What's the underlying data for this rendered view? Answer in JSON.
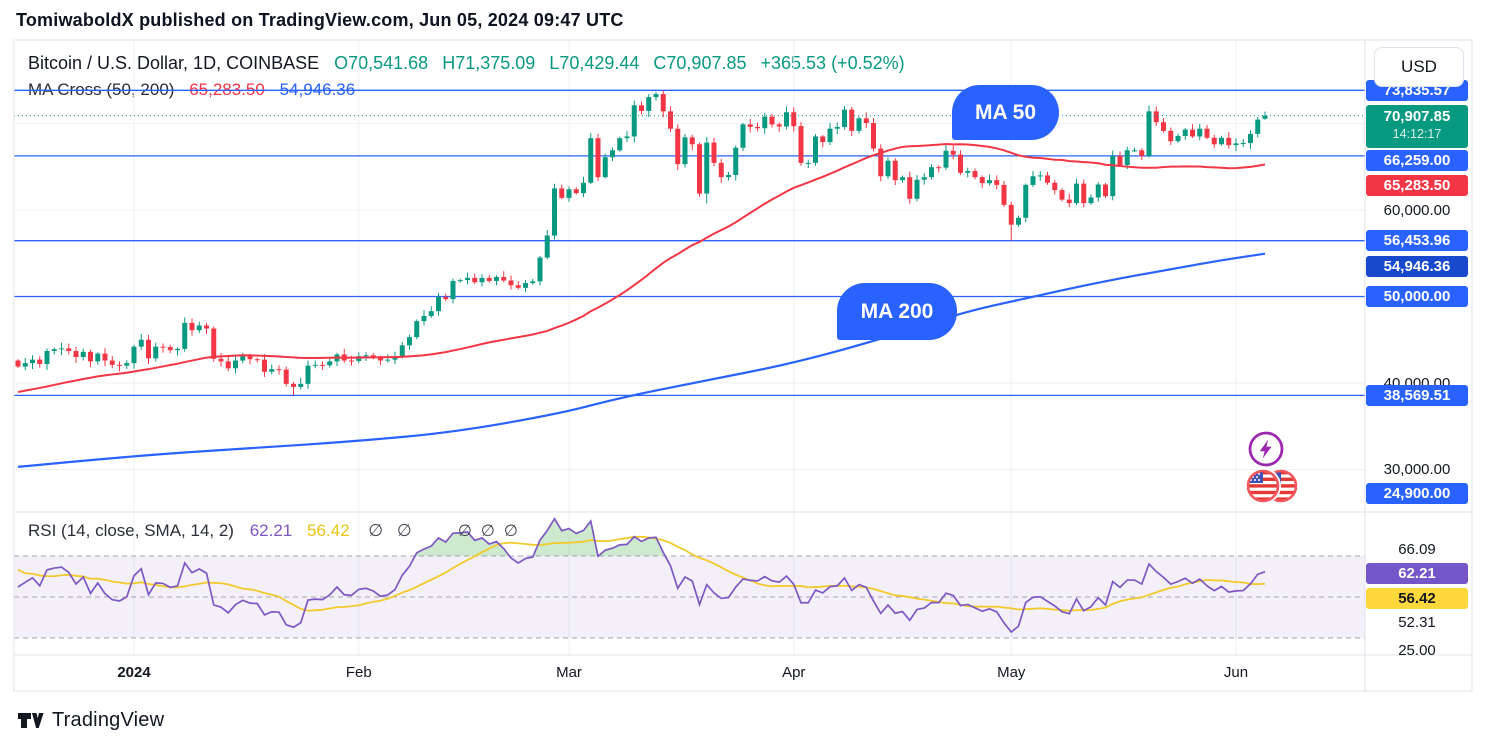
{
  "page": {
    "header": "TomiwaboldX published on TradingView.com, Jun 05, 2024 09:47 UTC",
    "footer_brand": "TradingView"
  },
  "chart_header": {
    "symbol_line": "Bitcoin / U.S. Dollar, 1D, COINBASE",
    "ohlc": {
      "open": "O70,541.68",
      "high": "H71,375.09",
      "low": "L70,429.44",
      "close": "C70,907.85",
      "change": "+365.53 (+0.52%)"
    }
  },
  "ma_cross_legend": {
    "title": "MA Cross (50, 200)",
    "ma50_value": "65,283.50",
    "ma200_value": "54,946.36"
  },
  "rsi_legend": {
    "title": "RSI (14, close, SMA, 14, 2)",
    "value": "62.21",
    "sma_value": "56.42",
    "null_symbol": "∅"
  },
  "annotations": {
    "ma50_bubble": "MA 50",
    "ma200_bubble": "MA 200"
  },
  "price_scale": {
    "currency_button": "USD",
    "labels": [
      {
        "text": "73,835.57",
        "value": 73835.57,
        "bg": "blue"
      },
      {
        "text": "70,907.85",
        "value": 70907.85,
        "bg": "green",
        "countdown": "14:12:17"
      },
      {
        "text": "66,259.00",
        "value": 66259.0,
        "bg": "blue"
      },
      {
        "text": "65,283.50",
        "value": 65283.5,
        "bg": "red"
      },
      {
        "text": "60,000.00",
        "value": 60000,
        "bg": "none"
      },
      {
        "text": "56,453.96",
        "value": 56453.96,
        "bg": "blue"
      },
      {
        "text": "54,946.36",
        "value": 54946.36,
        "bg": "darkblue"
      },
      {
        "text": "50,000.00",
        "value": 50000,
        "bg": "blue"
      },
      {
        "text": "40,000.00",
        "value": 40000,
        "bg": "none"
      },
      {
        "text": "38,569.51",
        "value": 38569.51,
        "bg": "blue"
      },
      {
        "text": "30,000.00",
        "value": 30000,
        "bg": "none"
      },
      {
        "text": "24,900.00",
        "value": 24900,
        "bg": "blue"
      }
    ]
  },
  "rsi_scale_labels": [
    {
      "text": "66.09",
      "bg": "none"
    },
    {
      "text": "62.21",
      "bg": "purple"
    },
    {
      "text": "56.42",
      "bg": "yellow"
    },
    {
      "text": "52.31",
      "bg": "none"
    },
    {
      "text": "25.00",
      "bg": "none"
    }
  ],
  "colors": {
    "up": "#089981",
    "down": "#f23645",
    "blue": "#2962ff",
    "darkblue": "#1848cc",
    "red": "#f23645",
    "green": "#089981",
    "purple": "#7456c8",
    "purple_line": "#7e57c2",
    "yellow": "#ffd83d",
    "yellow_line": "#f2ca2c",
    "text": "#131722",
    "grid": "#eef0f4",
    "border": "#e0e3eb"
  },
  "chart_data": {
    "type": "candlestick",
    "title": "Bitcoin / U.S. Dollar, 1D, COINBASE",
    "unit": "USD",
    "start_date_approx": "2023-12-16",
    "x_axis": {
      "ticks": [
        {
          "label": "2024",
          "day": 16,
          "bold": true
        },
        {
          "label": "Feb",
          "day": 47,
          "bold": false
        },
        {
          "label": "Mar",
          "day": 76,
          "bold": false
        },
        {
          "label": "Apr",
          "day": 107,
          "bold": false
        },
        {
          "label": "May",
          "day": 137,
          "bold": false
        },
        {
          "label": "Jun",
          "day": 168,
          "bold": false
        }
      ]
    },
    "last_candle": {
      "open": 70541.68,
      "high": 71375.09,
      "low": 70429.44,
      "close": 70907.85,
      "change": 365.53,
      "change_pct": 0.52
    },
    "levels_blue": [
      73835.57,
      66259.0,
      56453.96,
      50000,
      38569.51
    ],
    "current_price_line": 70907.85,
    "gray_gridlines": [
      70000,
      60000,
      40000,
      30000
    ],
    "daily_closes": [
      41900,
      42300,
      42700,
      42200,
      43700,
      43900,
      44000,
      43700,
      43000,
      43600,
      42500,
      43400,
      42600,
      42100,
      42000,
      42300,
      44200,
      45000,
      42850,
      44200,
      44150,
      43800,
      43950,
      46950,
      46100,
      46650,
      46300,
      42800,
      42500,
      41700,
      42600,
      43100,
      42750,
      42700,
      41300,
      41600,
      41550,
      39900,
      39550,
      39900,
      42000,
      42100,
      42050,
      42500,
      43300,
      42600,
      42550,
      43100,
      43200,
      43000,
      42600,
      42700,
      43100,
      44350,
      45300,
      47150,
      47750,
      48300,
      49950,
      49700,
      51800,
      51900,
      52150,
      51650,
      52150,
      51800,
      52250,
      51850,
      51300,
      51000,
      51550,
      51750,
      54500,
      57050,
      62500,
      61400,
      62400,
      61950,
      63150,
      68300,
      63800,
      66100,
      66900,
      68300,
      68500,
      72100,
      71450,
      73050,
      73400,
      71400,
      69400,
      65300,
      68400,
      67600,
      61900,
      67800,
      65450,
      63800,
      64050,
      67200,
      69900,
      69600,
      69450,
      70800,
      69900,
      69650,
      71300,
      69700,
      65450,
      65450,
      68500,
      67850,
      69400,
      69600,
      71600,
      69150,
      70600,
      70050,
      67100,
      63900,
      65700,
      63450,
      63800,
      61300,
      63500,
      63800,
      64950,
      64900,
      66850,
      66400,
      64300,
      64500,
      63800,
      63100,
      63450,
      62900,
      60600,
      58300,
      59100,
      62900,
      63900,
      64000,
      63150,
      62300,
      61200,
      60800,
      63050,
      60800,
      61450,
      62950,
      61600,
      66250,
      65200,
      66900,
      66900,
      66250,
      71400,
      70150,
      69150,
      67950,
      68550,
      69300,
      68500,
      69400,
      68350,
      67600,
      68350,
      67500,
      67700,
      67750,
      68800,
      70450,
      70907.85
    ],
    "pre_closes_for_ma": [
      33900,
      34100,
      34500,
      34700,
      35400,
      34900,
      34700,
      35100,
      35000,
      35000,
      35400,
      35600,
      36700,
      36700,
      37300,
      37100,
      37000,
      37900,
      36300,
      36600,
      36200,
      35500,
      36600,
      37400,
      37400,
      37900,
      37800,
      38700,
      39500,
      39900,
      40200,
      41000,
      43600,
      43600,
      43200,
      43300,
      43200,
      43300,
      41500,
      42600,
      42600,
      42300,
      41400,
      41500,
      42500,
      42800,
      43200,
      41900,
      42500,
      42600
    ],
    "candle_overrides": {
      "38": {
        "low": 38569.51
      },
      "89": {
        "high": 73835.57
      },
      "95": {
        "low": 60760
      },
      "137": {
        "low": 56453.96
      },
      "172": {
        "open": 70541.68,
        "high": 71375.09,
        "low": 70429.44,
        "close": 70907.85
      }
    },
    "ma50": {
      "length": 50,
      "current_value": 65283.5,
      "color": "#f23645"
    },
    "ma200": {
      "length": 200,
      "current_value": 54946.36,
      "color": "#2962ff",
      "points_day_price": [
        [
          0,
          30300
        ],
        [
          16,
          31600
        ],
        [
          33,
          32500
        ],
        [
          47,
          33300
        ],
        [
          60,
          34300
        ],
        [
          75,
          36500
        ],
        [
          83,
          38300
        ],
        [
          95,
          40300
        ],
        [
          107,
          42300
        ],
        [
          120,
          45300
        ],
        [
          130,
          48100
        ],
        [
          139,
          49800
        ],
        [
          150,
          51800
        ],
        [
          160,
          53300
        ],
        [
          166,
          54200
        ],
        [
          172,
          54946.36
        ]
      ]
    },
    "rsi": {
      "length": 14,
      "source": "close",
      "sma_length": 14,
      "value": 62.21,
      "sma_value": 56.42,
      "bands": [
        70,
        50,
        30
      ]
    }
  }
}
